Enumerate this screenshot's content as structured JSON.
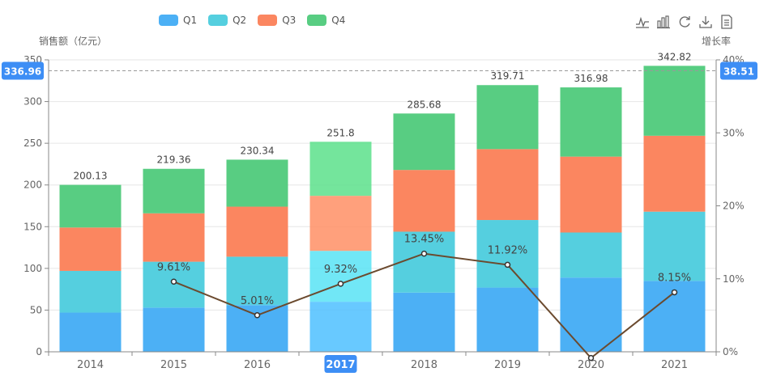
{
  "legend": [
    {
      "name": "Q1",
      "color": "#4cb0f5"
    },
    {
      "name": "Q2",
      "color": "#55cfdf"
    },
    {
      "name": "Q3",
      "color": "#fb8660"
    },
    {
      "name": "Q4",
      "color": "#58cd82"
    }
  ],
  "toolbox": [
    "line-chart-icon",
    "bar-chart-icon",
    "restore-icon",
    "download-icon",
    "data-view-icon"
  ],
  "chart_data": {
    "type": "bar",
    "stacked": true,
    "categories": [
      "2014",
      "2015",
      "2016",
      "2017",
      "2018",
      "2019",
      "2020",
      "2021"
    ],
    "highlighted_category": "2017",
    "y_left": {
      "label": "销售额（亿元）",
      "min": 0,
      "max": 350,
      "ticks": [
        0,
        50,
        100,
        150,
        200,
        250,
        300,
        350
      ]
    },
    "y_right": {
      "label": "增长率",
      "min": 0,
      "max": 40,
      "ticks": [
        "0%",
        "10%",
        "20%",
        "30%",
        "40%"
      ]
    },
    "series": [
      {
        "name": "Q1",
        "color": "#4cb0f5",
        "values": [
          47,
          53,
          56,
          60,
          71,
          77,
          89,
          85
        ]
      },
      {
        "name": "Q2",
        "color": "#55cfdf",
        "values": [
          50,
          55,
          58,
          61,
          73,
          81,
          54,
          83
        ]
      },
      {
        "name": "Q3",
        "color": "#fb8660",
        "values": [
          52,
          58,
          60,
          66,
          74,
          85,
          91,
          91
        ]
      },
      {
        "name": "Q4",
        "color": "#58cd82",
        "values": [
          51.13,
          53.36,
          56.34,
          64.8,
          67.68,
          76.71,
          82.98,
          83.82
        ]
      }
    ],
    "totals": [
      "200.13",
      "219.36",
      "230.34",
      "251.8",
      "285.68",
      "319.71",
      "316.98",
      "342.82"
    ],
    "growth_line": {
      "color": "#6b4a2e",
      "values": [
        null,
        9.61,
        5.01,
        9.32,
        13.45,
        11.92,
        -0.85,
        8.15
      ],
      "labels": [
        "",
        "9.61%",
        "5.01%",
        "9.32%",
        "13.45%",
        "11.92%",
        "",
        "8.15%"
      ]
    },
    "pointer": {
      "left_value": "336.96",
      "right_value": "38.51"
    },
    "grid": true,
    "legend_position": "top-left"
  }
}
